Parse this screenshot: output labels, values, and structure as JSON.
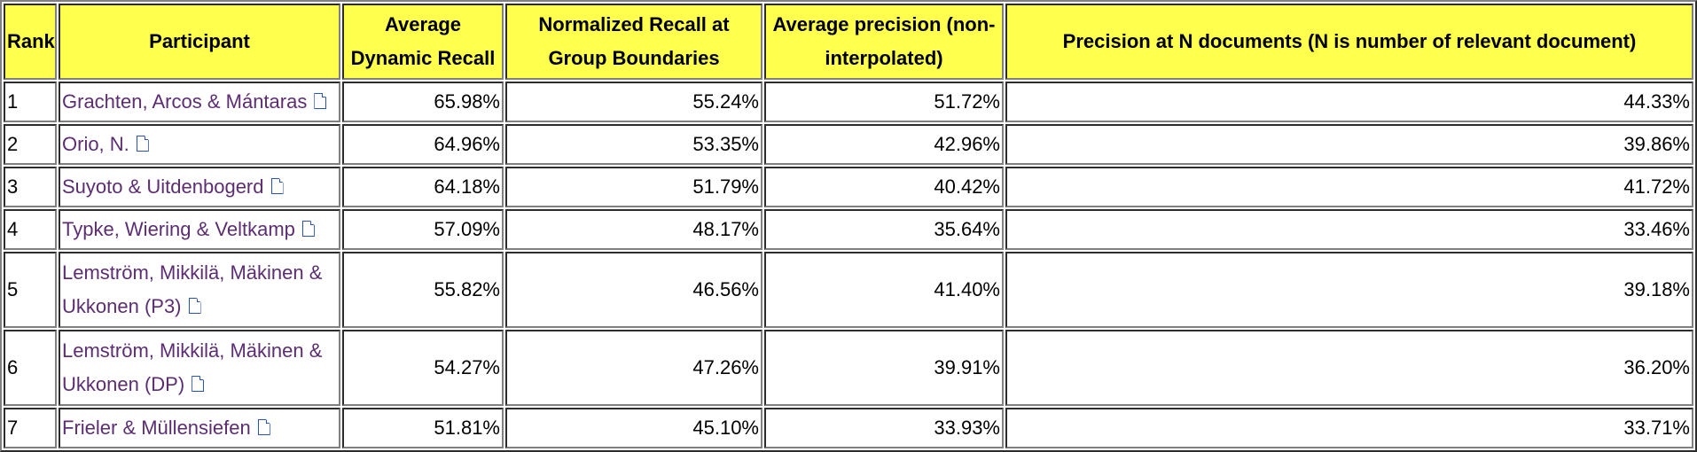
{
  "table": {
    "headers": {
      "rank": "Rank",
      "participant": "Participant",
      "adr": "Average Dynamic Recall",
      "nrgb": "Normalized Recall at Group Boundaries",
      "ap": "Average precision (non-interpolated)",
      "pnd": "Precision at N documents (N is number of relevant document)"
    },
    "rows": [
      {
        "rank": "1",
        "participant": "Grachten, Arcos & Mántaras",
        "adr": "65.98%",
        "nrgb": "55.24%",
        "ap": "51.72%",
        "pnd": "44.33%"
      },
      {
        "rank": "2",
        "participant": "Orio, N.",
        "adr": "64.96%",
        "nrgb": "53.35%",
        "ap": "42.96%",
        "pnd": "39.86%"
      },
      {
        "rank": "3",
        "participant": "Suyoto & Uitdenbogerd",
        "adr": "64.18%",
        "nrgb": "51.79%",
        "ap": "40.42%",
        "pnd": "41.72%"
      },
      {
        "rank": "4",
        "participant": "Typke, Wiering & Veltkamp",
        "adr": "57.09%",
        "nrgb": "48.17%",
        "ap": "35.64%",
        "pnd": "33.46%"
      },
      {
        "rank": "5",
        "participant": "Lemström, Mikkilä, Mäkinen & Ukkonen (P3)",
        "adr": "55.82%",
        "nrgb": "46.56%",
        "ap": "41.40%",
        "pnd": "39.18%"
      },
      {
        "rank": "6",
        "participant": "Lemström, Mikkilä, Mäkinen & Ukkonen (DP)",
        "adr": "54.27%",
        "nrgb": "47.26%",
        "ap": "39.91%",
        "pnd": "36.20%"
      },
      {
        "rank": "7",
        "participant": "Frieler & Müllensiefen",
        "adr": "51.81%",
        "nrgb": "45.10%",
        "ap": "33.93%",
        "pnd": "33.71%"
      }
    ]
  },
  "icons": {
    "doc": "document-icon"
  },
  "colors": {
    "header_bg": "#ffff4d",
    "link": "#5c2d73",
    "icon": "#2952b8"
  }
}
